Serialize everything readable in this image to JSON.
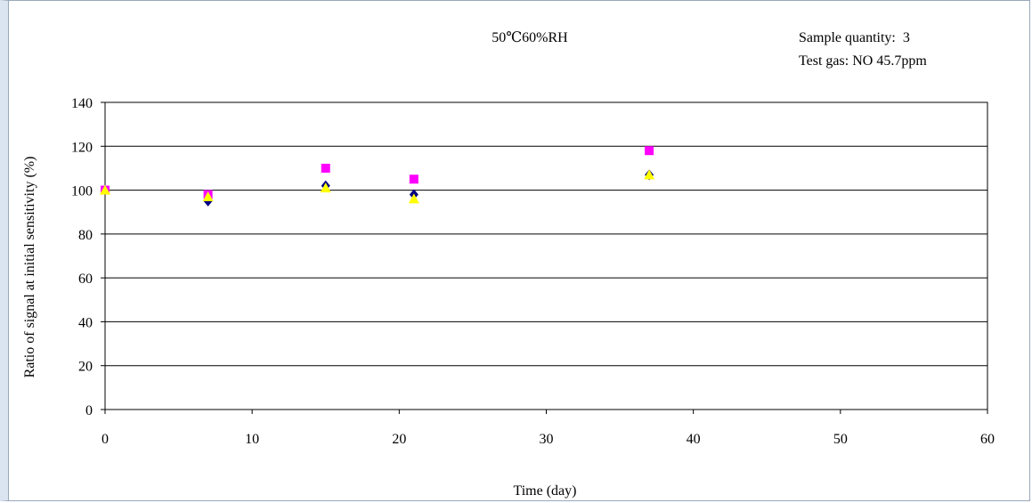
{
  "chart_data": {
    "type": "scatter",
    "title": "50℃60%RH",
    "annotations": [
      "Sample quantity:  3",
      "Test gas: NO 45.7ppm"
    ],
    "xlabel": "Time (day)",
    "ylabel": "Ratio of signal at initial sensitivity (%)",
    "xlim": [
      0,
      60
    ],
    "ylim": [
      0,
      140
    ],
    "x_ticks": [
      "0",
      "10",
      "20",
      "30",
      "40",
      "50",
      "60"
    ],
    "y_ticks": [
      "0",
      "20",
      "40",
      "60",
      "80",
      "100",
      "120",
      "140"
    ],
    "grid": "horizontal",
    "legend": "none",
    "series": [
      {
        "marker": "diamond",
        "color": "#000080",
        "points": [
          [
            0,
            100
          ],
          [
            7,
            95
          ],
          [
            15,
            102
          ],
          [
            21,
            98
          ],
          [
            37,
            107
          ]
        ]
      },
      {
        "marker": "square",
        "color": "#ff00ff",
        "points": [
          [
            0,
            100
          ],
          [
            7,
            98
          ],
          [
            15,
            110
          ],
          [
            21,
            105
          ],
          [
            37,
            118
          ]
        ]
      },
      {
        "marker": "triangle",
        "color": "#ffff00",
        "points": [
          [
            0,
            100
          ],
          [
            7,
            97
          ],
          [
            15,
            101
          ],
          [
            21,
            96
          ],
          [
            37,
            107
          ]
        ]
      }
    ]
  }
}
